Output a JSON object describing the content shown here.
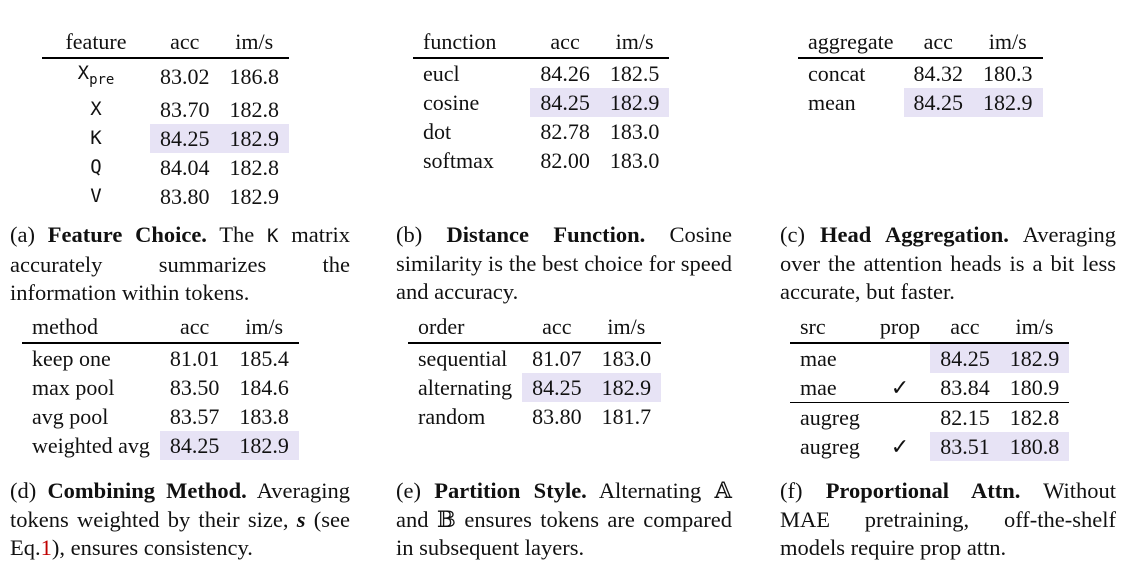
{
  "highlight_color": "#e7e3f5",
  "tables": {
    "a": {
      "headers": [
        "feature",
        "acc",
        "im/s"
      ],
      "rows": [
        {
          "feature": "X",
          "sub": "pre",
          "acc": "83.02",
          "ims": "186.8"
        },
        {
          "feature": "X",
          "acc": "83.70",
          "ims": "182.8"
        },
        {
          "feature": "K",
          "acc": "84.25",
          "ims": "182.9"
        },
        {
          "feature": "Q",
          "acc": "84.04",
          "ims": "182.8"
        },
        {
          "feature": "V",
          "acc": "83.80",
          "ims": "182.9"
        }
      ]
    },
    "b": {
      "headers": [
        "function",
        "acc",
        "im/s"
      ],
      "rows": [
        {
          "name": "eucl",
          "acc": "84.26",
          "ims": "182.5"
        },
        {
          "name": "cosine",
          "acc": "84.25",
          "ims": "182.9"
        },
        {
          "name": "dot",
          "acc": "82.78",
          "ims": "183.0"
        },
        {
          "name": "softmax",
          "acc": "82.00",
          "ims": "183.0"
        }
      ]
    },
    "c": {
      "headers": [
        "aggregate",
        "acc",
        "im/s"
      ],
      "rows": [
        {
          "name": "concat",
          "acc": "84.32",
          "ims": "180.3"
        },
        {
          "name": "mean",
          "acc": "84.25",
          "ims": "182.9"
        }
      ]
    },
    "d": {
      "headers": [
        "method",
        "acc",
        "im/s"
      ],
      "rows": [
        {
          "name": "keep one",
          "acc": "81.01",
          "ims": "185.4"
        },
        {
          "name": "max pool",
          "acc": "83.50",
          "ims": "184.6"
        },
        {
          "name": "avg pool",
          "acc": "83.57",
          "ims": "183.8"
        },
        {
          "name": "weighted avg",
          "acc": "84.25",
          "ims": "182.9"
        }
      ]
    },
    "e": {
      "headers": [
        "order",
        "acc",
        "im/s"
      ],
      "rows": [
        {
          "name": "sequential",
          "acc": "81.07",
          "ims": "183.0"
        },
        {
          "name": "alternating",
          "acc": "84.25",
          "ims": "182.9"
        },
        {
          "name": "random",
          "acc": "83.80",
          "ims": "181.7"
        }
      ]
    },
    "f": {
      "headers": [
        "src",
        "prop",
        "acc",
        "im/s"
      ],
      "rows": [
        {
          "src": "mae",
          "prop": "",
          "acc": "84.25",
          "ims": "182.9"
        },
        {
          "src": "mae",
          "prop": "✓",
          "acc": "83.84",
          "ims": "180.9"
        },
        {
          "src": "augreg",
          "prop": "",
          "acc": "82.15",
          "ims": "182.8"
        },
        {
          "src": "augreg",
          "prop": "✓",
          "acc": "83.51",
          "ims": "180.8"
        }
      ]
    }
  },
  "captions": {
    "a": {
      "tag": "(a)",
      "title": "Feature Choice.",
      "pre": "The",
      "k": "K",
      "post": "matrix accurately summarizes the information within tokens."
    },
    "b": {
      "tag": "(b)",
      "title": "Distance Function.",
      "body": "Cosine similarity is the best choice for speed and accuracy."
    },
    "c": {
      "tag": "(c)",
      "title": "Head Aggregation.",
      "body": "Averaging over the attention heads is a bit less accurate, but faster."
    },
    "d": {
      "tag": "(d)",
      "title": "Combining Method.",
      "body1": "Averaging tokens weighted by their size,",
      "sym": "s",
      "body2": "(see Eq.",
      "ref": "1",
      "body3": "), ensures consistency."
    },
    "e": {
      "tag": "(e)",
      "title": "Partition Style.",
      "body1": "Alternating",
      "setA": "𝔸",
      "body2": "and",
      "setB": "𝔹",
      "body3": "ensures tokens are compared in subsequent layers."
    },
    "f": {
      "tag": "(f)",
      "title": "Proportional Attn.",
      "body": "Without MAE pretraining, off-the-shelf models require prop attn."
    }
  }
}
